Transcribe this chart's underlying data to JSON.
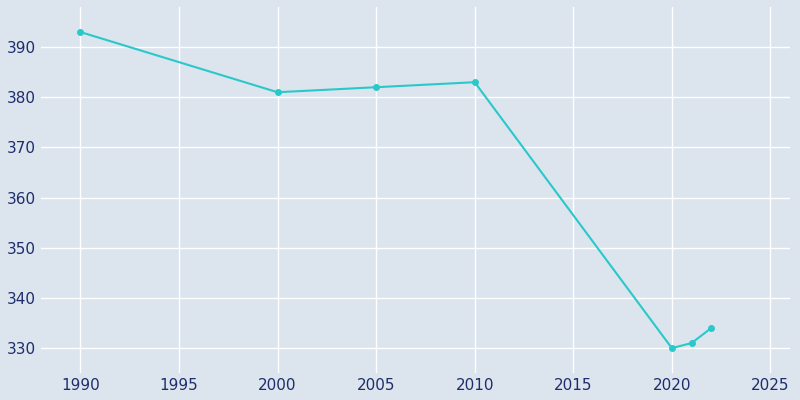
{
  "years": [
    1990,
    2000,
    2005,
    2010,
    2020,
    2021,
    2022
  ],
  "population": [
    393,
    381,
    382,
    383,
    330,
    331,
    334
  ],
  "line_color": "#29c9c9",
  "bg_color": "#dce4ee",
  "grid_color": "#ffffff",
  "tick_color": "#1e2d6b",
  "xlim": [
    1988,
    2026
  ],
  "ylim": [
    325,
    398
  ],
  "yticks": [
    330,
    340,
    350,
    360,
    370,
    380,
    390
  ],
  "xticks": [
    1990,
    1995,
    2000,
    2005,
    2010,
    2015,
    2020,
    2025
  ],
  "marker": "o",
  "markersize": 4
}
